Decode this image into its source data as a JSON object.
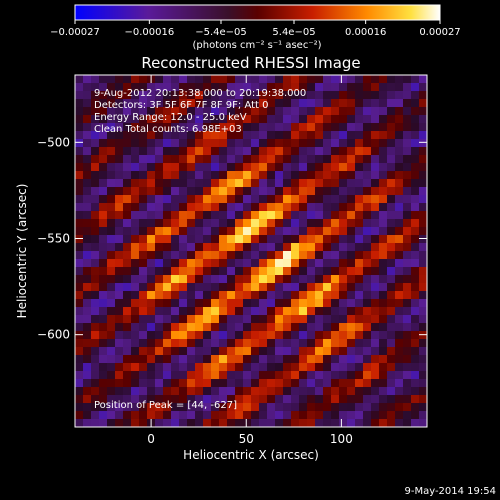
{
  "chart_data": {
    "type": "heatmap",
    "title": "Reconstructed RHESSI Image",
    "xlabel": "Heliocentric X (arcsec)",
    "ylabel": "Heliocentric Y (arcsec)",
    "xlim": [
      -40,
      145
    ],
    "ylim": [
      -648,
      -465
    ],
    "x_ticks": [
      0,
      50,
      100
    ],
    "x_tick_labels": [
      "0",
      "50",
      "100"
    ],
    "y_ticks": [
      -500,
      -550,
      -600
    ],
    "y_tick_labels": [
      "−500",
      "−550",
      "−600"
    ],
    "colorbar": {
      "range": [
        -0.00027,
        0.00027
      ],
      "ticks": [
        -0.00027,
        -0.00016,
        -5.4e-05,
        5.4e-05,
        0.00016,
        0.00027
      ],
      "tick_labels": [
        "−0.00027",
        "−0.00016",
        "−5.4e−05",
        "5.4e−05",
        "0.00016",
        "0.00027"
      ],
      "unit_label": "(photons cm⁻² s⁻¹ asec⁻²)",
      "colormap": "IDL color table 3 variant (blue-purple-red-orange-yellow-white)"
    },
    "annotations": [
      "9-Aug-2012 20:13:38.000 to 20:19:38.000",
      "Detectors: 3F 5F 6F 7F 8F 9F; Att 0",
      "Energy Range: 12.0 - 25.0 keV",
      "Clean     Total counts: 6.98E+03"
    ],
    "peak_label": "Position of Peak = [44, -627]",
    "peak": {
      "x": 44,
      "y": -627
    },
    "source_center": {
      "x": 55,
      "y": -565
    },
    "stripe_angle_deg": -35
  },
  "footer": {
    "timestamp": "9-May-2014 19:54"
  }
}
